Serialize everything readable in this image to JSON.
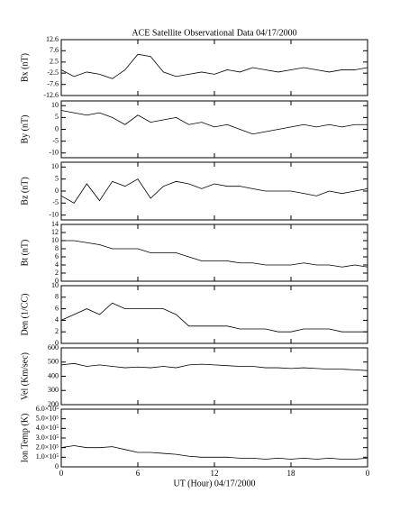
{
  "title": "ACE Satellite Observational Data  04/17/2000",
  "chart_data": [
    {
      "type": "line",
      "ylabel": "Bx (nT)",
      "color": "#000000",
      "x": [
        0,
        1,
        2,
        3,
        4,
        5,
        6,
        7,
        8,
        9,
        10,
        11,
        12,
        13,
        14,
        15,
        16,
        17,
        18,
        19,
        20,
        21,
        22,
        23,
        24
      ],
      "values": [
        -1,
        -4,
        -2,
        -3,
        -5,
        -1,
        6,
        5,
        -2,
        -4,
        -3,
        -2,
        -3,
        -1,
        -2,
        0,
        -1,
        -2,
        -1,
        0,
        -1,
        -2,
        -1,
        -1,
        0
      ],
      "xlim": [
        0,
        24
      ],
      "ylim": [
        -12.6,
        12.6
      ],
      "yticks": [
        -12.6,
        -7.6,
        -2.5,
        2.5,
        7.6,
        12.6
      ]
    },
    {
      "type": "line",
      "ylabel": "By (nT)",
      "color": "#000000",
      "x": [
        0,
        1,
        2,
        3,
        4,
        5,
        6,
        7,
        8,
        9,
        10,
        11,
        12,
        13,
        14,
        15,
        16,
        17,
        18,
        19,
        20,
        21,
        22,
        23,
        24
      ],
      "values": [
        8,
        7,
        6,
        7,
        5,
        2,
        6,
        3,
        4,
        5,
        2,
        3,
        1,
        2,
        0,
        -2,
        -1,
        0,
        1,
        2,
        1,
        2,
        1,
        2,
        2
      ],
      "xlim": [
        0,
        24
      ],
      "ylim": [
        -12,
        12
      ],
      "yticks": [
        -10,
        -5,
        0,
        5,
        10
      ]
    },
    {
      "type": "line",
      "ylabel": "Bz (nT)",
      "color": "#000000",
      "x": [
        0,
        1,
        2,
        3,
        4,
        5,
        6,
        7,
        8,
        9,
        10,
        11,
        12,
        13,
        14,
        15,
        16,
        17,
        18,
        19,
        20,
        21,
        22,
        23,
        24
      ],
      "values": [
        -2,
        -5,
        3,
        -4,
        4,
        2,
        5,
        -3,
        2,
        4,
        3,
        1,
        3,
        2,
        2,
        1,
        0,
        0,
        0,
        -1,
        -2,
        0,
        -1,
        0,
        1
      ],
      "xlim": [
        0,
        24
      ],
      "ylim": [
        -12,
        12
      ],
      "yticks": [
        -10,
        -5,
        0,
        5,
        10
      ]
    },
    {
      "type": "line",
      "ylabel": "Bt (nT)",
      "color": "#000000",
      "x": [
        0,
        1,
        2,
        3,
        4,
        5,
        6,
        7,
        8,
        9,
        10,
        11,
        12,
        13,
        14,
        15,
        16,
        17,
        18,
        19,
        20,
        21,
        22,
        23,
        24
      ],
      "values": [
        10,
        10,
        9.5,
        9,
        8,
        8,
        8,
        7,
        7,
        7,
        6,
        5,
        5,
        5,
        4.5,
        4.5,
        4,
        4,
        4,
        4.5,
        4,
        4,
        3.5,
        4,
        3.5
      ],
      "xlim": [
        0,
        24
      ],
      "ylim": [
        0,
        14
      ],
      "yticks": [
        0,
        2,
        4,
        6,
        8,
        10,
        12,
        14
      ]
    },
    {
      "type": "line",
      "ylabel": "Den (1/CC)",
      "color": "#000000",
      "x": [
        0,
        1,
        2,
        3,
        4,
        5,
        6,
        7,
        8,
        9,
        10,
        11,
        12,
        13,
        14,
        15,
        16,
        17,
        18,
        19,
        20,
        21,
        22,
        23,
        24
      ],
      "values": [
        4,
        5,
        6,
        5,
        7,
        6,
        6,
        6,
        6,
        5,
        3,
        3,
        3,
        3,
        2.5,
        2.5,
        2.5,
        2,
        2,
        2.5,
        2.5,
        2.5,
        2,
        2,
        2
      ],
      "xlim": [
        0,
        24
      ],
      "ylim": [
        0,
        10
      ],
      "yticks": [
        0,
        2,
        4,
        6,
        8,
        10
      ]
    },
    {
      "type": "line",
      "ylabel": "Vel (Km/sec)",
      "color": "#000000",
      "x": [
        0,
        1,
        2,
        3,
        4,
        5,
        6,
        7,
        8,
        9,
        10,
        11,
        12,
        13,
        14,
        15,
        16,
        17,
        18,
        19,
        20,
        21,
        22,
        23,
        24
      ],
      "values": [
        480,
        490,
        470,
        480,
        470,
        460,
        465,
        460,
        470,
        460,
        480,
        485,
        480,
        475,
        470,
        470,
        460,
        460,
        455,
        460,
        455,
        450,
        450,
        445,
        440
      ],
      "xlim": [
        0,
        24
      ],
      "ylim": [
        200,
        600
      ],
      "yticks": [
        200,
        300,
        400,
        500,
        600
      ]
    },
    {
      "type": "line",
      "ylabel": "Ion Temp (K)",
      "xlabel": "UT (Hour)  04/17/2000",
      "color": "#000000",
      "x": [
        0,
        1,
        2,
        3,
        4,
        5,
        6,
        7,
        8,
        9,
        10,
        11,
        12,
        13,
        14,
        15,
        16,
        17,
        18,
        19,
        20,
        21,
        22,
        23,
        24
      ],
      "values": [
        200000,
        220000,
        200000,
        200000,
        210000,
        180000,
        150000,
        150000,
        140000,
        130000,
        110000,
        100000,
        100000,
        100000,
        90000,
        90000,
        80000,
        90000,
        80000,
        90000,
        80000,
        90000,
        80000,
        80000,
        90000
      ],
      "xlim": [
        0,
        24
      ],
      "ylim": [
        0,
        600000
      ],
      "yticks": [
        0,
        {
          "value": 100000,
          "label": "1.0×10⁵"
        },
        {
          "value": 200000,
          "label": "2.0×10⁵"
        },
        {
          "value": 300000,
          "label": "3.0×10⁵"
        },
        {
          "value": 400000,
          "label": "4.0×10⁵"
        },
        {
          "value": 500000,
          "label": "5.0×10⁵"
        },
        {
          "value": 600000,
          "label": "6.0×10⁵"
        }
      ],
      "xticks": [
        0,
        6,
        12,
        18,
        {
          "value": 24,
          "label": "0"
        }
      ]
    }
  ]
}
